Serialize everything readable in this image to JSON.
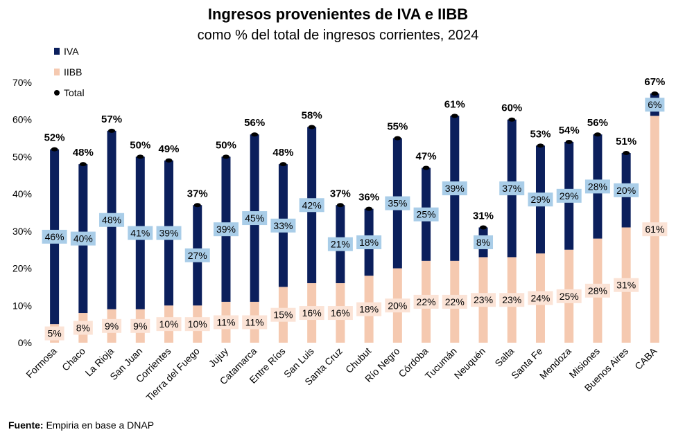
{
  "title": "Ingresos provenientes de IVA e IIBB",
  "subtitle": "como % del total de ingresos corrientes, 2024",
  "source": {
    "label": "Fuente:",
    "text": " Empiria en base a DNAP"
  },
  "colors": {
    "iva": "#0b1f5c",
    "iibb": "#f5c9b0",
    "iva_label_bg": "#a9cde8",
    "iibb_label_bg": "#fbe3d6",
    "total_dot": "#000000"
  },
  "chart_data": {
    "type": "bar",
    "stacked": true,
    "categories": [
      "Formosa",
      "Chaco",
      "La Rioja",
      "San Juan",
      "Corrientes",
      "Tierra del Fuego",
      "Jujuy",
      "Catamarca",
      "Entre Ríos",
      "San Luis",
      "Santa Cruz",
      "Chubut",
      "Río Negro",
      "Córdoba",
      "Tucumán",
      "Neuquén",
      "Salta",
      "Santa Fe",
      "Mendoza",
      "Misiones",
      "Buenos Aires",
      "CABA"
    ],
    "series": [
      {
        "name": "IVA",
        "values": [
          46,
          40,
          48,
          41,
          39,
          27,
          39,
          45,
          33,
          42,
          21,
          18,
          35,
          25,
          39,
          8,
          37,
          29,
          29,
          28,
          20,
          6
        ]
      },
      {
        "name": "IIBB",
        "values": [
          5,
          8,
          9,
          9,
          10,
          10,
          11,
          11,
          15,
          16,
          16,
          18,
          20,
          22,
          22,
          23,
          23,
          24,
          25,
          28,
          31,
          61
        ]
      },
      {
        "name": "Total",
        "values": [
          52,
          48,
          57,
          50,
          49,
          37,
          50,
          56,
          48,
          58,
          37,
          36,
          55,
          47,
          61,
          31,
          60,
          53,
          54,
          56,
          51,
          67
        ]
      }
    ],
    "y_ticks": [
      "0%",
      "10%",
      "20%",
      "30%",
      "40%",
      "50%",
      "60%",
      "70%"
    ],
    "ylim": [
      0,
      70
    ],
    "legend_position": "top-left",
    "grid": false
  }
}
